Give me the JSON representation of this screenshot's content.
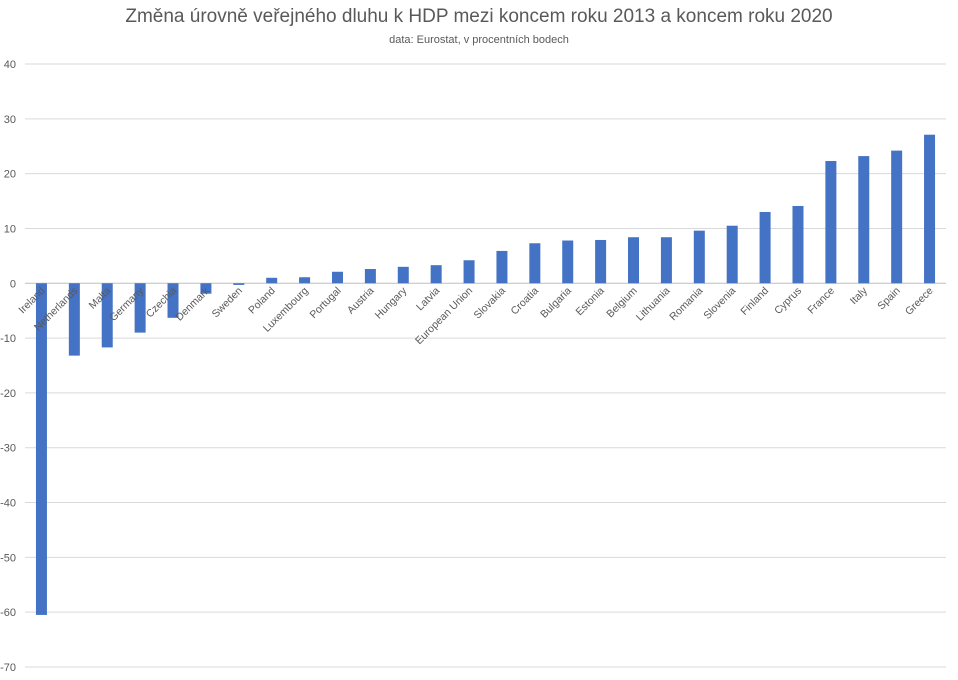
{
  "chart_data": {
    "type": "bar",
    "title": "Změna úrovně veřejného dluhu k HDP mezi koncem roku 2013 a koncem roku 2020",
    "subtitle": "data: Eurostat, v procentních bodech",
    "xlabel": "",
    "ylabel": "",
    "ylim": [
      -70,
      40
    ],
    "yticks": [
      40,
      30,
      20,
      10,
      0,
      -10,
      -20,
      -30,
      -40,
      -50,
      -60,
      -70
    ],
    "grid": true,
    "legend": "none",
    "bar_color": "#4472C4",
    "categories": [
      "Ireland",
      "Netherlands",
      "Malta",
      "Germany",
      "Czechia",
      "Denmark",
      "Sweden",
      "Poland",
      "Luxembourg",
      "Portugal",
      "Austria",
      "Hungary",
      "Latvia",
      "European Union",
      "Slovakia",
      "Croatia",
      "Bulgaria",
      "Estonia",
      "Belgium",
      "Lithuania",
      "Romania",
      "Slovenia",
      "Finland",
      "Cyprus",
      "France",
      "Italy",
      "Spain",
      "Greece"
    ],
    "values": [
      -60.5,
      -13.2,
      -11.7,
      -9.0,
      -6.3,
      -1.9,
      -0.3,
      1.0,
      1.1,
      2.1,
      2.6,
      3.0,
      3.3,
      4.2,
      5.9,
      7.3,
      7.8,
      7.9,
      8.4,
      8.4,
      9.6,
      10.5,
      13.0,
      14.1,
      22.3,
      23.2,
      24.2,
      27.1
    ]
  }
}
